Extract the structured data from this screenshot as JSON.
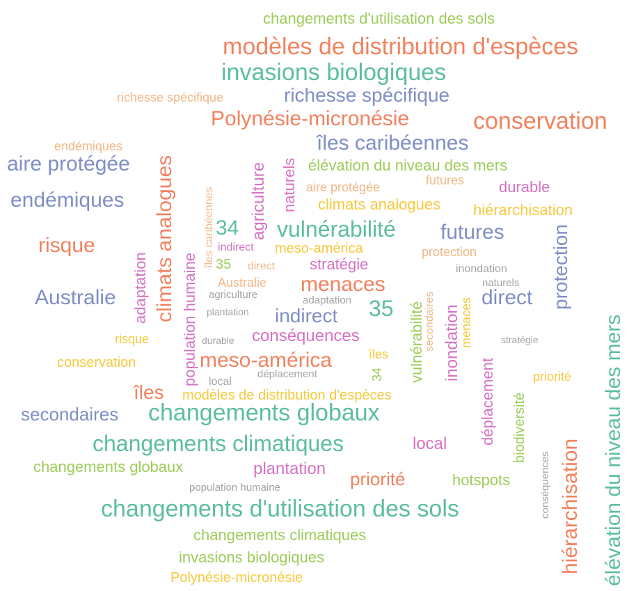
{
  "words": [
    {
      "text": "changements d'utilisation des sols",
      "color": "#9ccd5a"
    },
    {
      "text": "modèles de distribution d'espèces",
      "color": "#f2825f"
    },
    {
      "text": "invasions biologiques",
      "color": "#5cbf9a"
    },
    {
      "text": "richesse spécifique",
      "color": "#f1b887"
    },
    {
      "text": "richesse spécifique",
      "color": "#7f8fc6"
    },
    {
      "text": "Polynésie-micronésie",
      "color": "#f2825f"
    },
    {
      "text": "conservation",
      "color": "#f2825f"
    },
    {
      "text": "endémiques",
      "color": "#f1b887"
    },
    {
      "text": "îles caribéennes",
      "color": "#7f8fc6"
    },
    {
      "text": "aire protégée",
      "color": "#7f8fc6"
    },
    {
      "text": "élévation du niveau des mers",
      "color": "#9ccd5a"
    },
    {
      "text": "aire protégée",
      "color": "#f1b887"
    },
    {
      "text": "futures",
      "color": "#f1b887"
    },
    {
      "text": "durable",
      "color": "#d672c4"
    },
    {
      "text": "endémiques",
      "color": "#7f8fc6"
    },
    {
      "text": "climats analogues",
      "color": "#f6c93e"
    },
    {
      "text": "hiérarchisation",
      "color": "#f6c93e"
    },
    {
      "text": "34",
      "color": "#5cbf9a"
    },
    {
      "text": "vulnérabilité",
      "color": "#5cbf9a"
    },
    {
      "text": "futures",
      "color": "#7f8fc6"
    },
    {
      "text": "risque",
      "color": "#f2825f"
    },
    {
      "text": "indirect",
      "color": "#d672c4"
    },
    {
      "text": "meso-américa",
      "color": "#f6c93e"
    },
    {
      "text": "protection",
      "color": "#f1b887"
    },
    {
      "text": "35",
      "color": "#9ccd5a"
    },
    {
      "text": "direct",
      "color": "#f1b887"
    },
    {
      "text": "stratégie",
      "color": "#d672c4"
    },
    {
      "text": "inondation",
      "color": "#a3a3a3"
    },
    {
      "text": "Australie",
      "color": "#f1b887"
    },
    {
      "text": "menaces",
      "color": "#f2825f"
    },
    {
      "text": "naturels",
      "color": "#a3a3a3"
    },
    {
      "text": "agriculture",
      "color": "#a3a3a3"
    },
    {
      "text": "adaptation",
      "color": "#a3a3a3"
    },
    {
      "text": "Australie",
      "color": "#7f8fc6"
    },
    {
      "text": "35",
      "color": "#5cbf9a"
    },
    {
      "text": "direct",
      "color": "#7f8fc6"
    },
    {
      "text": "plantation",
      "color": "#a3a3a3"
    },
    {
      "text": "indirect",
      "color": "#7f8fc6"
    },
    {
      "text": "risque",
      "color": "#f6c93e"
    },
    {
      "text": "durable",
      "color": "#a3a3a3"
    },
    {
      "text": "conséquences",
      "color": "#d672c4"
    },
    {
      "text": "stratégie",
      "color": "#a3a3a3"
    },
    {
      "text": "îles",
      "color": "#f6c93e"
    },
    {
      "text": "conservation",
      "color": "#f6c93e"
    },
    {
      "text": "meso-américa",
      "color": "#f2825f"
    },
    {
      "text": "local",
      "color": "#a3a3a3"
    },
    {
      "text": "déplacement",
      "color": "#a3a3a3"
    },
    {
      "text": "priorité",
      "color": "#f6c93e"
    },
    {
      "text": "îles",
      "color": "#f2825f"
    },
    {
      "text": "modèles de distribution d'espèces",
      "color": "#f6c93e"
    },
    {
      "text": "secondaires",
      "color": "#7f8fc6"
    },
    {
      "text": "changements globaux",
      "color": "#5cbf9a"
    },
    {
      "text": "changements climatiques",
      "color": "#5cbf9a"
    },
    {
      "text": "local",
      "color": "#d672c4"
    },
    {
      "text": "changements globaux",
      "color": "#9ccd5a"
    },
    {
      "text": "plantation",
      "color": "#d672c4"
    },
    {
      "text": "population humaine",
      "color": "#a3a3a3"
    },
    {
      "text": "priorité",
      "color": "#f2825f"
    },
    {
      "text": "hotspots",
      "color": "#9ccd5a"
    },
    {
      "text": "changements d'utilisation des sols",
      "color": "#5cbf9a"
    },
    {
      "text": "changements climatiques",
      "color": "#9ccd5a"
    },
    {
      "text": "invasions biologiques",
      "color": "#9ccd5a"
    },
    {
      "text": "Polynésie-micronésie",
      "color": "#f6c93e"
    },
    {
      "text": "climats analogues",
      "color": "#f2825f"
    },
    {
      "text": "adaptation",
      "color": "#d672c4"
    },
    {
      "text": "population humaine",
      "color": "#d672c4"
    },
    {
      "text": "îles caribéennes",
      "color": "#f1b887"
    },
    {
      "text": "agriculture",
      "color": "#d672c4"
    },
    {
      "text": "naturels",
      "color": "#d672c4"
    },
    {
      "text": "vulnérabilité",
      "color": "#9ccd5a"
    },
    {
      "text": "secondaires",
      "color": "#f1b887"
    },
    {
      "text": "inondation",
      "color": "#d672c4"
    },
    {
      "text": "menaces",
      "color": "#f6c93e"
    },
    {
      "text": "34",
      "color": "#9ccd5a"
    },
    {
      "text": "déplacement",
      "color": "#d672c4"
    },
    {
      "text": "protection",
      "color": "#7f8fc6"
    },
    {
      "text": "biodiversité",
      "color": "#9ccd5a"
    },
    {
      "text": "conséquences",
      "color": "#a3a3a3"
    },
    {
      "text": "hiérarchisation",
      "color": "#f2825f"
    },
    {
      "text": "élévation du niveau des mers",
      "color": "#5cbf9a"
    }
  ]
}
